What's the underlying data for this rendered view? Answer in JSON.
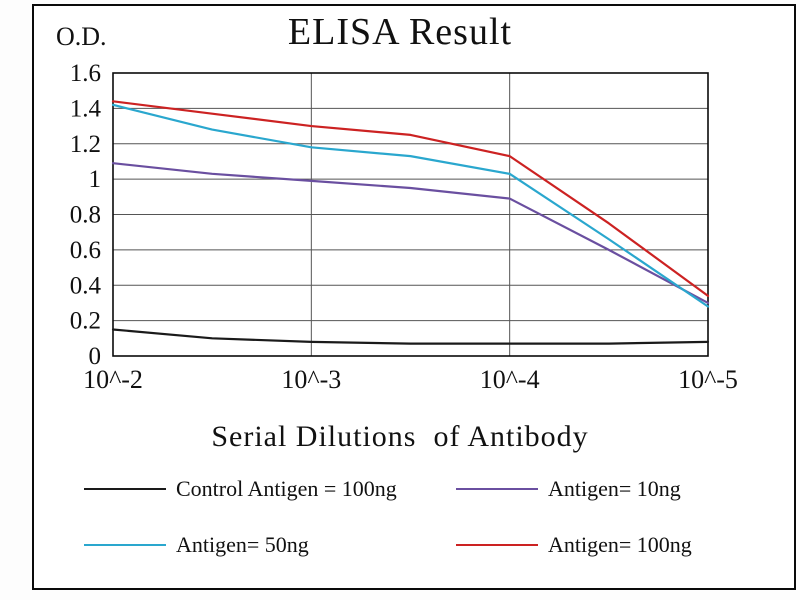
{
  "chart_data": {
    "type": "line",
    "title": "ELISA Result",
    "xlabel": "Serial Dilutions  of Antibody",
    "ylabel": "O.D.",
    "xtick_labels": [
      "10^-2",
      "10^-3",
      "10^-4",
      "10^-5"
    ],
    "xtick_positions": [
      0,
      1,
      2,
      3
    ],
    "xlim": [
      0,
      3
    ],
    "yticks": [
      0,
      0.2,
      0.4,
      0.6,
      0.8,
      1,
      1.2,
      1.4,
      1.6
    ],
    "ylim": [
      0,
      1.6
    ],
    "grid": true,
    "legend_position": "bottom",
    "x": [
      0,
      0.5,
      1,
      1.5,
      2,
      2.5,
      3
    ],
    "series": [
      {
        "name": "Control Antigen = 100ng",
        "color": "#1a1a1a",
        "values": [
          0.15,
          0.1,
          0.08,
          0.07,
          0.07,
          0.07,
          0.08
        ]
      },
      {
        "name": "Antigen= 10ng",
        "color": "#6a4fa0",
        "values": [
          1.09,
          1.03,
          0.99,
          0.95,
          0.89,
          0.6,
          0.3
        ]
      },
      {
        "name": "Antigen= 50ng",
        "color": "#2aa7ce",
        "values": [
          1.42,
          1.28,
          1.18,
          1.13,
          1.03,
          0.66,
          0.28
        ]
      },
      {
        "name": "Antigen= 100ng",
        "color": "#cc2222",
        "values": [
          1.44,
          1.37,
          1.3,
          1.25,
          1.13,
          0.75,
          0.34
        ]
      }
    ],
    "values_at_ticks": {
      "Control Antigen = 100ng": [
        0.15,
        0.08,
        0.07,
        0.08
      ],
      "Antigen= 10ng": [
        1.09,
        0.99,
        0.89,
        0.3
      ],
      "Antigen= 50ng": [
        1.42,
        1.18,
        1.03,
        0.28
      ],
      "Antigen= 100ng": [
        1.44,
        1.3,
        1.13,
        0.34
      ]
    }
  }
}
